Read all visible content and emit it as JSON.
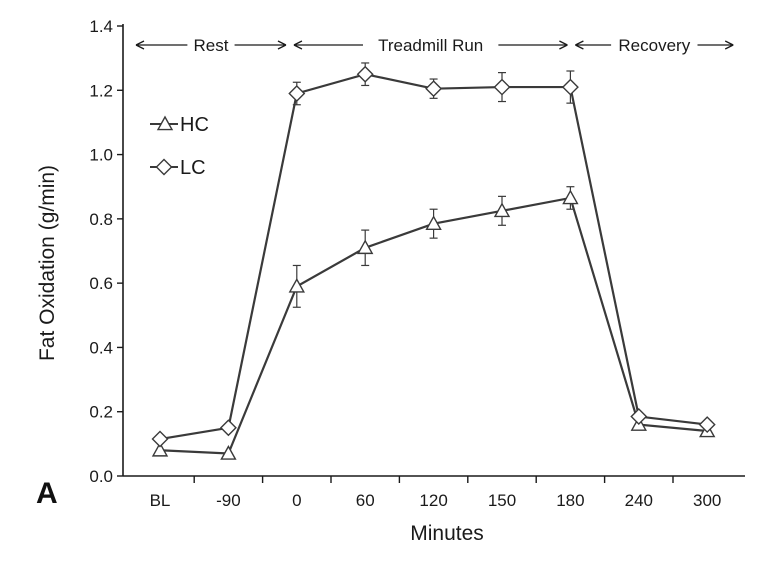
{
  "chart_data": {
    "type": "line",
    "panel_label": "A",
    "xlabel": "Minutes",
    "ylabel": "Fat Oxidation (g/min)",
    "categories": [
      "BL",
      "-90",
      "0",
      "60",
      "120",
      "150",
      "180",
      "240",
      "300"
    ],
    "ylim": [
      0.0,
      1.4
    ],
    "yticks": [
      "0.0",
      "0.2",
      "0.4",
      "0.6",
      "0.8",
      "1.0",
      "1.2",
      "1.4"
    ],
    "grid": false,
    "legend_position": "upper-left",
    "phases": [
      {
        "label": "Rest"
      },
      {
        "label": "Treadmill Run"
      },
      {
        "label": "Recovery"
      }
    ],
    "series": [
      {
        "name": "HC",
        "marker": "triangle",
        "values": [
          0.08,
          0.07,
          0.59,
          0.71,
          0.785,
          0.825,
          0.865,
          0.16,
          0.14
        ],
        "errors": [
          0,
          0,
          0.065,
          0.055,
          0.045,
          0.045,
          0.035,
          0,
          0
        ]
      },
      {
        "name": "LC",
        "marker": "diamond",
        "values": [
          0.115,
          0.15,
          1.19,
          1.25,
          1.205,
          1.21,
          1.21,
          0.185,
          0.16
        ],
        "errors": [
          0,
          0,
          0.035,
          0.035,
          0.03,
          0.045,
          0.05,
          0,
          0
        ]
      }
    ],
    "colors": {
      "line": "#3a3a3a",
      "marker_fill": "#ffffff",
      "axis": "#1a1a1a"
    }
  }
}
